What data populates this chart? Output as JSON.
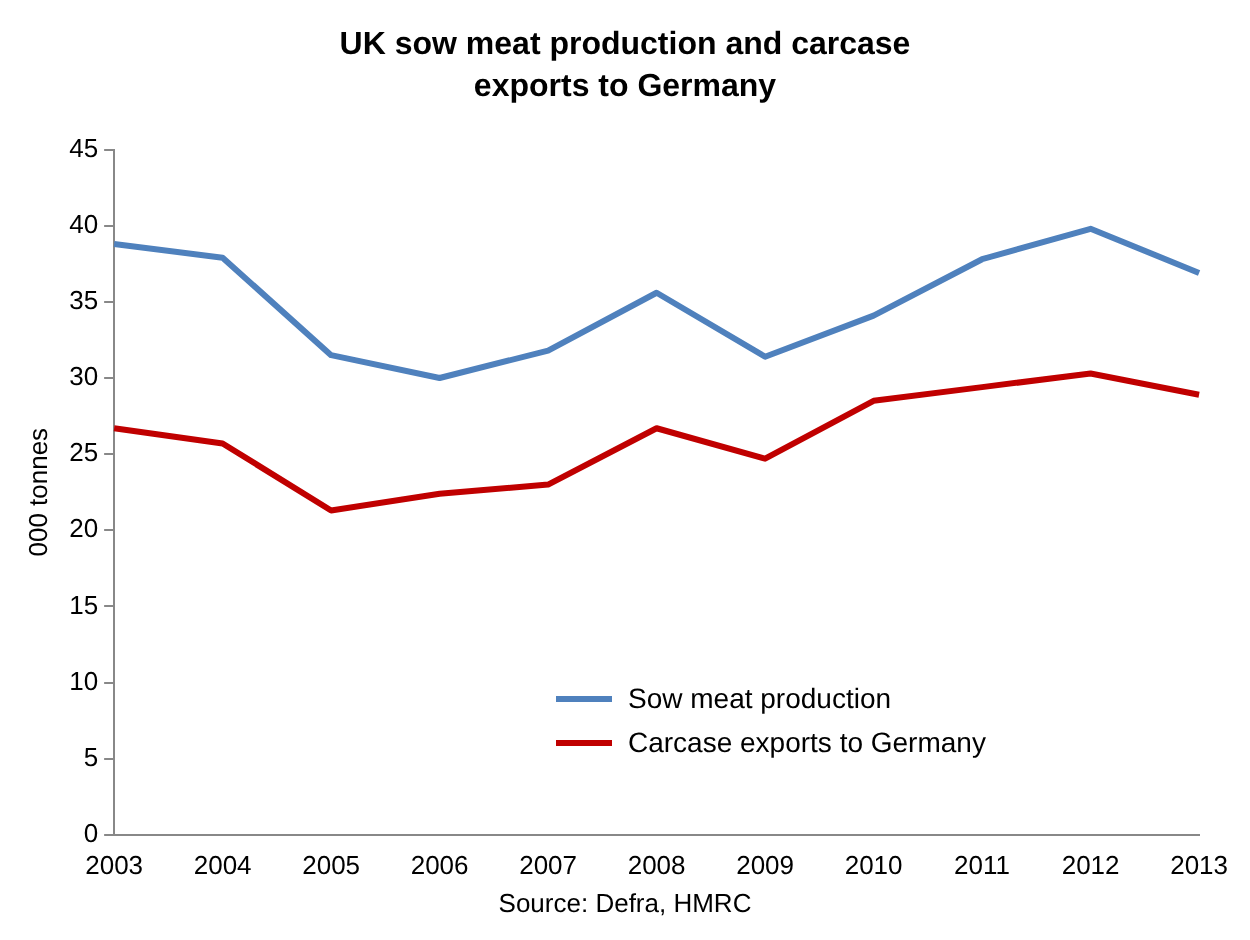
{
  "chart_data": {
    "type": "line",
    "title": "UK sow meat production and carcase exports to Germany",
    "ylabel": "000 tonnes",
    "categories": [
      "2003",
      "2004",
      "2005",
      "2006",
      "2007",
      "2008",
      "2009",
      "2010",
      "2011",
      "2012",
      "2013"
    ],
    "series": [
      {
        "name": "Sow meat production",
        "color": "#4f81bd",
        "values": [
          38.8,
          37.9,
          31.5,
          30.0,
          31.8,
          35.6,
          31.4,
          34.1,
          37.8,
          39.8,
          36.9
        ]
      },
      {
        "name": "Carcase exports to Germany",
        "color": "#c00000",
        "values": [
          26.7,
          25.7,
          21.3,
          22.4,
          23.0,
          26.7,
          24.7,
          28.5,
          29.4,
          30.3,
          28.9
        ]
      }
    ],
    "ylim": [
      0,
      45
    ],
    "yticks": [
      0,
      5,
      10,
      15,
      20,
      25,
      30,
      35,
      40,
      45
    ],
    "grid": false,
    "legend": "bottom",
    "marker": "none",
    "line_style": "solid",
    "annotations": [
      "Source: Defra, HMRC"
    ]
  }
}
